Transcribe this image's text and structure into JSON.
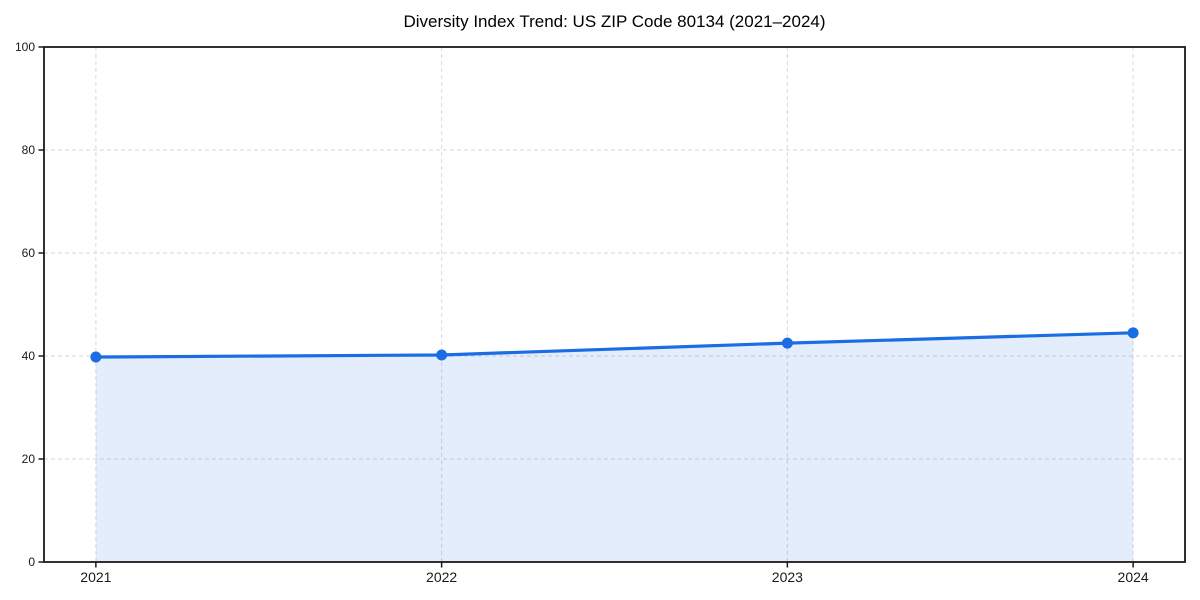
{
  "page": {
    "background": "#ffffff"
  },
  "chart_data": {
    "type": "area",
    "title": "Diversity Index Trend: US ZIP Code 80134 (2021–2024)",
    "categories": [
      "2021",
      "2022",
      "2023",
      "2024"
    ],
    "x": [
      2021,
      2022,
      2023,
      2024
    ],
    "values": [
      39.8,
      40.2,
      42.5,
      44.5
    ],
    "series_name": "Diversity Index",
    "xlabel": "",
    "ylabel": "",
    "ylim": [
      0,
      100
    ],
    "yticks": [
      0,
      20,
      40,
      60,
      80,
      100
    ],
    "xtick_labels": [
      "2021",
      "2022",
      "2023",
      "2024"
    ],
    "grid": true,
    "grid_style": "dashed",
    "legend": false,
    "colors": {
      "line": "#1b6de4",
      "marker": "#1b6de4",
      "fill": "#1b6de4",
      "fill_opacity": 0.12,
      "grid": "#dfdfdf",
      "spine": "#1a1a1a",
      "tick_label": "#1a1a1a",
      "title": "#000000",
      "background": "#ffffff"
    }
  }
}
